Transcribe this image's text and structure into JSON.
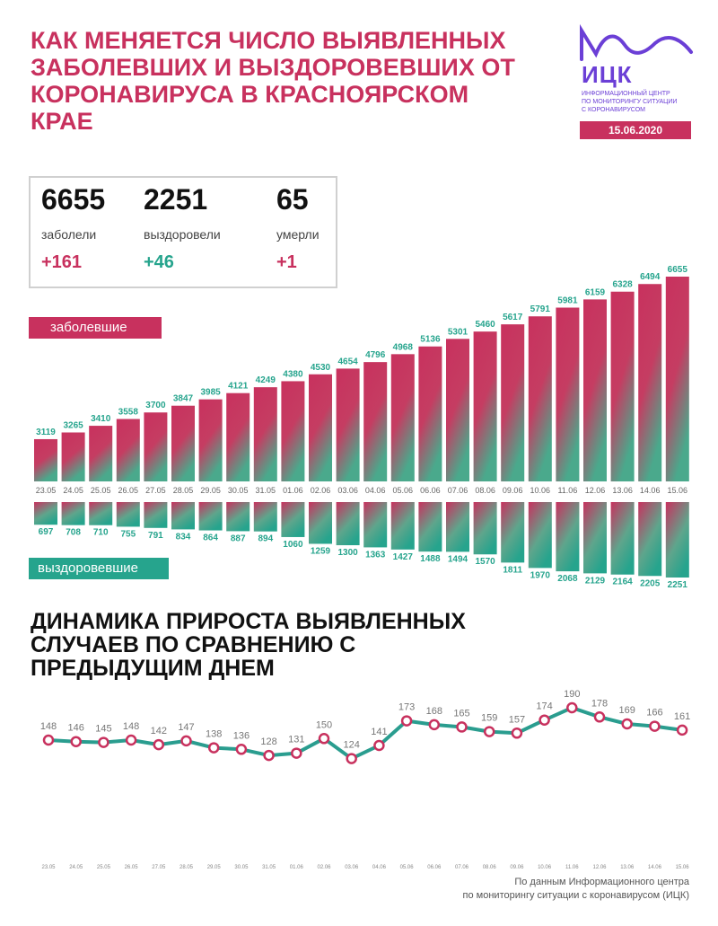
{
  "header": {
    "title_lines": [
      "КАК МЕНЯЕТСЯ ЧИСЛО ВЫЯВЛЕННЫХ",
      "ЗАБОЛЕВШИХ И ВЫЗДОРОВЕВШИХ ОТ",
      "КОРОНАВИРУСА В КРАСНОЯРСКОМ",
      "КРАЕ"
    ],
    "logo_text": "ИЦК",
    "logo_sub_lines": [
      "ИНФОРМАЦИОННЫЙ ЦЕНТР",
      "ПО МОНИТОРИНГУ СИТУАЦИИ",
      "С КОРОНАВИРУСОМ"
    ],
    "date": "15.06.2020"
  },
  "stats": {
    "sick": {
      "value": "6655",
      "label": "заболели",
      "delta": "+161"
    },
    "recovered": {
      "value": "2251",
      "label": "выздоровели",
      "delta": "+46"
    },
    "died": {
      "value": "65",
      "label": "умерли",
      "delta": "+1"
    }
  },
  "labels": {
    "sick_bar": "заболевшие",
    "recovered_bar": "выздоровевшие"
  },
  "colors": {
    "accent": "#c8315e",
    "green": "#26a48d",
    "purple": "#6b3fd6",
    "line": "#2a9d8f"
  },
  "subtitle_lines": [
    "ДИНАМИКА ПРИРОСТА ВЫЯВЛЕННЫХ",
    "СЛУЧАЕВ ПО СРАВНЕНИЮ С",
    "ПРЕДЫДУЩИМ ДНЕМ"
  ],
  "source_lines": [
    "По данным Информационного центра",
    "по мониторингу ситуации с коронавирусом (ИЦК)"
  ],
  "chart_data": [
    {
      "type": "bar",
      "categories": [
        "23.05",
        "24.05",
        "25.05",
        "26.05",
        "27.05",
        "28.05",
        "29.05",
        "30.05",
        "31.05",
        "01.06",
        "02.06",
        "03.06",
        "04.06",
        "05.06",
        "06.06",
        "07.06",
        "08.06",
        "09.06",
        "10.06",
        "11.06",
        "12.06",
        "13.06",
        "14.06",
        "15.06"
      ],
      "series": [
        {
          "name": "заболевшие",
          "values": [
            3119,
            3265,
            3410,
            3558,
            3700,
            3847,
            3985,
            4121,
            4249,
            4380,
            4530,
            4654,
            4796,
            4968,
            5136,
            5301,
            5460,
            5617,
            5791,
            5981,
            6159,
            6328,
            6494,
            6655
          ]
        },
        {
          "name": "выздоровевшие",
          "values": [
            697,
            708,
            710,
            755,
            791,
            834,
            864,
            887,
            894,
            1060,
            1259,
            1300,
            1363,
            1427,
            1488,
            1494,
            1570,
            1811,
            1970,
            2068,
            2129,
            2164,
            2205,
            2251
          ]
        }
      ]
    },
    {
      "type": "line",
      "categories": [
        "23.05",
        "24.05",
        "25.05",
        "26.05",
        "27.05",
        "28.05",
        "29.05",
        "30.05",
        "31.05",
        "01.06",
        "02.06",
        "03.06",
        "04.06",
        "05.06",
        "06.06",
        "07.06",
        "08.06",
        "09.06",
        "10.06",
        "11.06",
        "12.06",
        "13.06",
        "14.06",
        "15.06"
      ],
      "values": [
        148,
        146,
        145,
        148,
        142,
        147,
        138,
        136,
        128,
        131,
        150,
        124,
        141,
        173,
        168,
        165,
        159,
        157,
        174,
        190,
        178,
        169,
        166,
        161
      ]
    }
  ]
}
